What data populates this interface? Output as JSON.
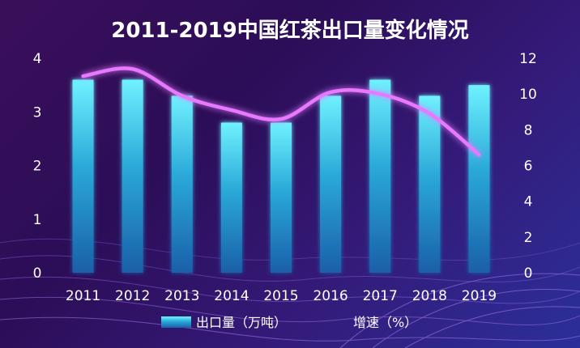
{
  "chart_data": {
    "type": "bar",
    "title": "2011-2019中国红茶出口量变化情况",
    "categories": [
      "2011",
      "2012",
      "2013",
      "2014",
      "2015",
      "2016",
      "2017",
      "2018",
      "2019"
    ],
    "series": [
      {
        "name": "出口量（万吨）",
        "type": "bar",
        "axis": "left",
        "values": [
          3.6,
          3.6,
          3.3,
          2.8,
          2.8,
          3.3,
          3.6,
          3.3,
          3.5
        ]
      },
      {
        "name": "增速（%）",
        "type": "line",
        "axis": "right",
        "values": [
          11.0,
          11.4,
          9.9,
          9.1,
          8.6,
          10.1,
          10.0,
          8.9,
          6.6
        ]
      }
    ],
    "y_left": {
      "min": 0,
      "max": 4,
      "ticks": [
        "0",
        "1",
        "2",
        "3",
        "4"
      ]
    },
    "y_right": {
      "min": 0,
      "max": 12,
      "ticks": [
        "0",
        "2",
        "4",
        "6",
        "8",
        "10",
        "12"
      ]
    },
    "grid": false,
    "legend": "bottom-center",
    "colors": {
      "bar_top": "#6ff1ff",
      "bar_bottom": "#1a6fb0",
      "line": "#e879ff"
    }
  }
}
